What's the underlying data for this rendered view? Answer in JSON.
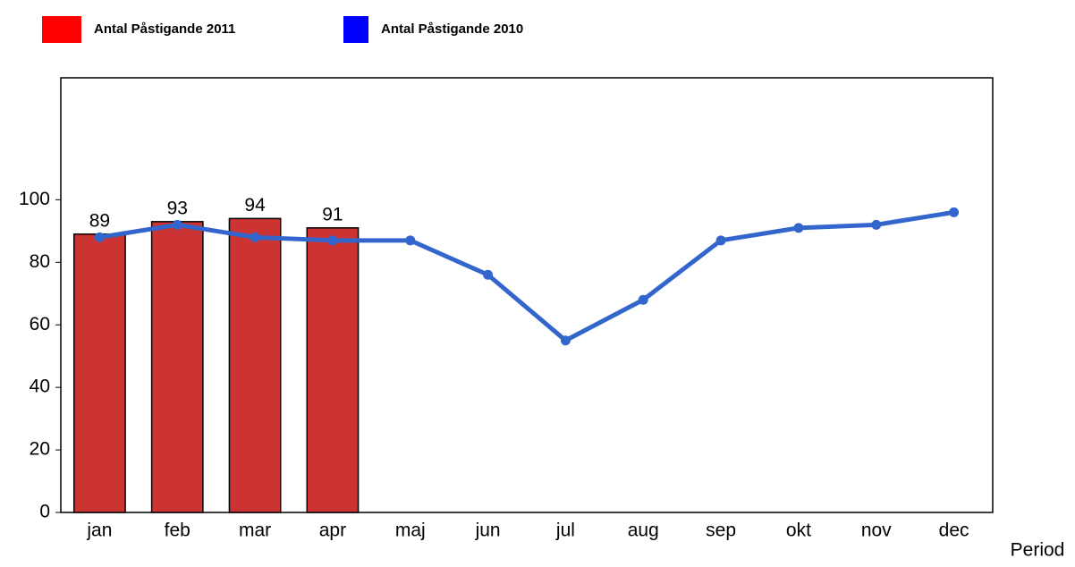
{
  "chart_data": {
    "type": "bar_line",
    "x_label": "Period",
    "categories": [
      "jan",
      "feb",
      "mar",
      "apr",
      "maj",
      "jun",
      "jul",
      "aug",
      "sep",
      "okt",
      "nov",
      "dec"
    ],
    "series": [
      {
        "name": "Antal Påstigande 2011",
        "type": "bar",
        "color": "#cc3333",
        "legend_color": "#ff0000",
        "values": [
          89,
          93,
          94,
          91,
          null,
          null,
          null,
          null,
          null,
          null,
          null,
          null
        ]
      },
      {
        "name": "Antal Påstigande 2010",
        "type": "line",
        "color": "#3366cc",
        "legend_color": "#0000ff",
        "values": [
          88,
          92,
          88,
          87,
          87,
          76,
          55,
          68,
          87,
          91,
          92,
          96
        ]
      }
    ],
    "ylim": [
      0,
      139
    ],
    "yticks": [
      0,
      20,
      40,
      60,
      80,
      100
    ],
    "grid": false
  }
}
